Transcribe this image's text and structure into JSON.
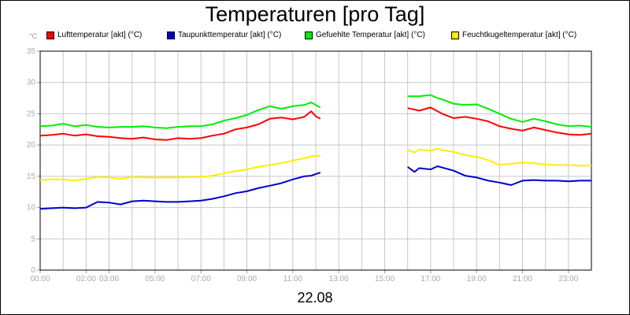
{
  "chart_data": {
    "type": "line",
    "title": "Temperaturen [pro Tag]",
    "ylabel": "°C",
    "xlabel": "22.08",
    "ylim": [
      0,
      35
    ],
    "yticks": [
      0,
      5,
      10,
      15,
      20,
      25,
      30,
      35
    ],
    "xlim": [
      0,
      24
    ],
    "xticks": [
      {
        "h": 0,
        "label": "00:00"
      },
      {
        "h": 2,
        "label": "02:00"
      },
      {
        "h": 3,
        "label": "03:00"
      },
      {
        "h": 5,
        "label": "05:00"
      },
      {
        "h": 7,
        "label": "07:00"
      },
      {
        "h": 9,
        "label": "09:00"
      },
      {
        "h": 11,
        "label": "11:00"
      },
      {
        "h": 13,
        "label": "13:00"
      },
      {
        "h": 15,
        "label": "15:00"
      },
      {
        "h": 17,
        "label": "17:00"
      },
      {
        "h": 19,
        "label": "19:00"
      },
      {
        "h": 21,
        "label": "21:00"
      },
      {
        "h": 23,
        "label": "23:00"
      }
    ],
    "grid": true,
    "legend_position": "top",
    "series": [
      {
        "name": "Lufttemperatur [akt] (°C)",
        "color": "#ff0000",
        "segments": [
          [
            [
              0,
              21.5
            ],
            [
              0.5,
              21.6
            ],
            [
              1,
              21.8
            ],
            [
              1.5,
              21.5
            ],
            [
              2,
              21.7
            ],
            [
              2.5,
              21.4
            ],
            [
              3,
              21.3
            ],
            [
              3.5,
              21.1
            ],
            [
              4,
              21.0
            ],
            [
              4.5,
              21.2
            ],
            [
              5,
              20.9
            ],
            [
              5.5,
              20.8
            ],
            [
              6,
              21.1
            ],
            [
              6.5,
              21.0
            ],
            [
              7,
              21.1
            ],
            [
              7.5,
              21.5
            ],
            [
              8,
              21.8
            ],
            [
              8.5,
              22.5
            ],
            [
              9,
              22.8
            ],
            [
              9.5,
              23.3
            ],
            [
              10,
              24.2
            ],
            [
              10.5,
              24.4
            ],
            [
              11,
              24.1
            ],
            [
              11.5,
              24.5
            ],
            [
              11.8,
              25.4
            ],
            [
              12,
              24.6
            ],
            [
              12.2,
              24.2
            ]
          ],
          [
            [
              16,
              25.9
            ],
            [
              16.5,
              25.5
            ],
            [
              17,
              26.0
            ],
            [
              17.3,
              25.4
            ],
            [
              17.5,
              25.0
            ],
            [
              18,
              24.3
            ],
            [
              18.5,
              24.5
            ],
            [
              19,
              24.2
            ],
            [
              19.5,
              23.8
            ],
            [
              20,
              23.0
            ],
            [
              20.5,
              22.6
            ],
            [
              21,
              22.3
            ],
            [
              21.5,
              22.8
            ],
            [
              22,
              22.4
            ],
            [
              22.5,
              22.0
            ],
            [
              23,
              21.7
            ],
            [
              23.5,
              21.6
            ],
            [
              24,
              21.8
            ]
          ]
        ]
      },
      {
        "name": "Taupunkttemperatur [akt] (°C)",
        "color": "#0000cc",
        "segments": [
          [
            [
              0,
              9.8
            ],
            [
              0.5,
              9.9
            ],
            [
              1,
              10.0
            ],
            [
              1.5,
              9.9
            ],
            [
              2,
              10.0
            ],
            [
              2.5,
              10.9
            ],
            [
              3,
              10.8
            ],
            [
              3.5,
              10.5
            ],
            [
              4,
              11.0
            ],
            [
              4.5,
              11.1
            ],
            [
              5,
              11.0
            ],
            [
              5.5,
              10.9
            ],
            [
              6,
              10.9
            ],
            [
              6.5,
              11.0
            ],
            [
              7,
              11.1
            ],
            [
              7.5,
              11.4
            ],
            [
              8,
              11.8
            ],
            [
              8.5,
              12.3
            ],
            [
              9,
              12.6
            ],
            [
              9.5,
              13.1
            ],
            [
              10,
              13.5
            ],
            [
              10.5,
              13.9
            ],
            [
              11,
              14.5
            ],
            [
              11.5,
              15.0
            ],
            [
              11.8,
              15.1
            ],
            [
              12.2,
              15.6
            ]
          ],
          [
            [
              16,
              16.5
            ],
            [
              16.3,
              15.7
            ],
            [
              16.5,
              16.3
            ],
            [
              17,
              16.1
            ],
            [
              17.3,
              16.6
            ],
            [
              17.5,
              16.4
            ],
            [
              18,
              15.9
            ],
            [
              18.5,
              15.1
            ],
            [
              19,
              14.8
            ],
            [
              19.5,
              14.3
            ],
            [
              20,
              14.0
            ],
            [
              20.5,
              13.6
            ],
            [
              21,
              14.3
            ],
            [
              21.5,
              14.4
            ],
            [
              22,
              14.3
            ],
            [
              22.5,
              14.3
            ],
            [
              23,
              14.2
            ],
            [
              23.5,
              14.3
            ],
            [
              24,
              14.3
            ]
          ]
        ]
      },
      {
        "name": "Gefuehlte Temperatur [akt] (°C)",
        "color": "#00ee00",
        "segments": [
          [
            [
              0,
              23.0
            ],
            [
              0.5,
              23.1
            ],
            [
              1,
              23.4
            ],
            [
              1.5,
              23.0
            ],
            [
              2,
              23.2
            ],
            [
              2.5,
              22.9
            ],
            [
              3,
              22.8
            ],
            [
              3.5,
              22.9
            ],
            [
              4,
              22.9
            ],
            [
              4.5,
              23.0
            ],
            [
              5,
              22.8
            ],
            [
              5.5,
              22.7
            ],
            [
              6,
              22.9
            ],
            [
              6.5,
              23.0
            ],
            [
              7,
              23.0
            ],
            [
              7.5,
              23.3
            ],
            [
              8,
              23.9
            ],
            [
              8.5,
              24.3
            ],
            [
              9,
              24.8
            ],
            [
              9.5,
              25.6
            ],
            [
              10,
              26.2
            ],
            [
              10.5,
              25.8
            ],
            [
              11,
              26.2
            ],
            [
              11.5,
              26.4
            ],
            [
              11.8,
              26.8
            ],
            [
              12.2,
              26.0
            ]
          ],
          [
            [
              16,
              27.8
            ],
            [
              16.5,
              27.8
            ],
            [
              17,
              28.0
            ],
            [
              17.3,
              27.5
            ],
            [
              17.5,
              27.3
            ],
            [
              18,
              26.6
            ],
            [
              18.5,
              26.4
            ],
            [
              19,
              26.5
            ],
            [
              19.5,
              25.8
            ],
            [
              20,
              25.0
            ],
            [
              20.5,
              24.2
            ],
            [
              21,
              23.7
            ],
            [
              21.5,
              24.2
            ],
            [
              22,
              23.8
            ],
            [
              22.5,
              23.3
            ],
            [
              23,
              23.0
            ],
            [
              23.5,
              23.1
            ],
            [
              24,
              22.9
            ]
          ]
        ]
      },
      {
        "name": "Feuchtkugeltemperatur [akt] (°C)",
        "color": "#ffee00",
        "segments": [
          [
            [
              0,
              14.4
            ],
            [
              0.5,
              14.5
            ],
            [
              1,
              14.5
            ],
            [
              1.5,
              14.3
            ],
            [
              2,
              14.6
            ],
            [
              2.5,
              14.9
            ],
            [
              3,
              14.8
            ],
            [
              3.5,
              14.6
            ],
            [
              4,
              14.9
            ],
            [
              4.5,
              14.8
            ],
            [
              5,
              14.8
            ],
            [
              5.5,
              14.8
            ],
            [
              6,
              14.8
            ],
            [
              6.5,
              14.9
            ],
            [
              7,
              14.9
            ],
            [
              7.5,
              15.1
            ],
            [
              8,
              15.5
            ],
            [
              8.5,
              15.8
            ],
            [
              9,
              16.1
            ],
            [
              9.5,
              16.5
            ],
            [
              10,
              16.8
            ],
            [
              10.5,
              17.1
            ],
            [
              11,
              17.5
            ],
            [
              11.5,
              17.9
            ],
            [
              11.8,
              18.2
            ],
            [
              12.2,
              18.3
            ]
          ],
          [
            [
              16,
              19.2
            ],
            [
              16.3,
              18.8
            ],
            [
              16.5,
              19.3
            ],
            [
              17,
              19.1
            ],
            [
              17.3,
              19.4
            ],
            [
              17.5,
              19.2
            ],
            [
              18,
              18.9
            ],
            [
              18.5,
              18.4
            ],
            [
              19,
              18.1
            ],
            [
              19.5,
              17.6
            ],
            [
              20,
              16.8
            ],
            [
              20.5,
              17.0
            ],
            [
              21,
              17.2
            ],
            [
              21.5,
              17.1
            ],
            [
              22,
              16.9
            ],
            [
              22.5,
              16.8
            ],
            [
              23,
              16.8
            ],
            [
              23.5,
              16.7
            ],
            [
              24,
              16.7
            ]
          ]
        ]
      }
    ]
  }
}
